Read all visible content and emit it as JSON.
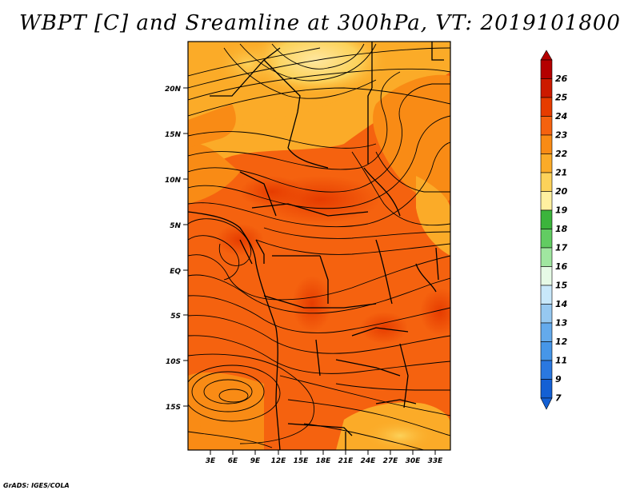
{
  "title": "WBPT [C] and Sreamline at 300hPa, VT: 2019101800",
  "credit": "GrADS: IGES/COLA",
  "map": {
    "lat_ticks": [
      "20N",
      "15N",
      "10N",
      "5N",
      "EQ",
      "5S",
      "10S",
      "15S"
    ],
    "lon_ticks": [
      "3E",
      "6E",
      "9E",
      "12E",
      "15E",
      "18E",
      "21E",
      "24E",
      "27E",
      "30E",
      "33E"
    ],
    "lat_values": [
      20,
      15,
      10,
      5,
      0,
      -5,
      -10,
      -15
    ],
    "lon_values": [
      3,
      6,
      9,
      12,
      15,
      18,
      21,
      24,
      27,
      30,
      33
    ],
    "lon_range": [
      0,
      35
    ],
    "lat_range": [
      -20,
      24.5
    ]
  },
  "colorbar": {
    "labels": [
      "26",
      "25",
      "24",
      "23",
      "22",
      "21",
      "20",
      "19",
      "18",
      "17",
      "16",
      "15",
      "14",
      "13",
      "12",
      "11",
      "9",
      "7"
    ],
    "colors": [
      "#b40000",
      "#cc1a00",
      "#e63c00",
      "#f5620f",
      "#f98b15",
      "#fbab28",
      "#fcd25a",
      "#fff0a0",
      "#3cb43c",
      "#62cc62",
      "#a0e6a0",
      "#e6fae6",
      "#c8e8fa",
      "#96c8f0",
      "#64aaec",
      "#4696e8",
      "#2a78e0",
      "#1460d4"
    ]
  }
}
